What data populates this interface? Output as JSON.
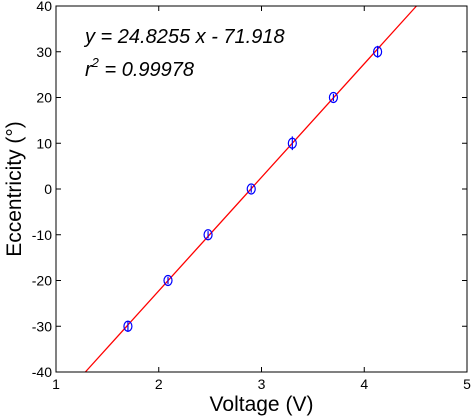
{
  "chart_data": {
    "type": "scatter",
    "xlabel": "Voltage (V)",
    "ylabel": "Eccentricity (°)",
    "xlim": [
      1,
      5
    ],
    "ylim": [
      -40,
      40
    ],
    "x_ticks": [
      1,
      2,
      3,
      4,
      5
    ],
    "y_ticks": [
      -40,
      -30,
      -20,
      -10,
      0,
      10,
      20,
      30,
      40
    ],
    "grid": false,
    "legend": "none",
    "annotations": [
      "y = 24.8255 x - 71.918",
      "r",
      "2",
      " = 0.99978"
    ],
    "series": [
      {
        "marker_color": "#0000ff",
        "x": [
          1.7,
          2.09,
          2.48,
          2.9,
          3.3,
          3.7,
          4.13
        ],
        "y": [
          -30,
          -20,
          -10,
          0,
          10,
          20,
          30
        ],
        "error": [
          1.2,
          0.8,
          0.8,
          0.8,
          1.5,
          0.8,
          1.3
        ]
      }
    ],
    "fit_line": {
      "color": "#ff0000",
      "slope": 24.8255,
      "intercept": -71.918
    }
  }
}
